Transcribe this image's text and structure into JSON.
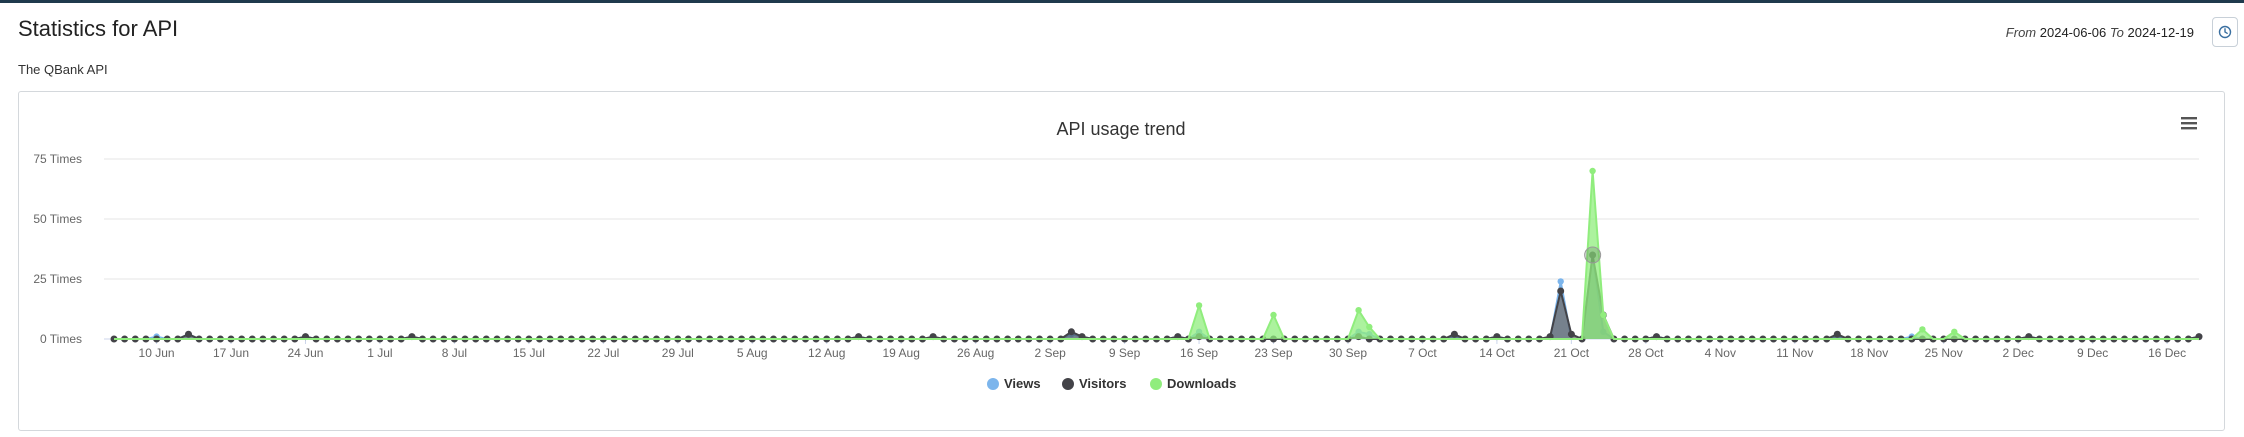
{
  "page": {
    "title": "Statistics for API",
    "subtitle": "The QBank API",
    "range_from_label": "From",
    "range_from": "2024-06-06",
    "range_to_label": "To",
    "range_to": "2024-12-19",
    "clock_icon": "clock-icon",
    "menu_icon": "hamburger-menu-icon"
  },
  "chart_data": {
    "type": "line",
    "title": "API usage trend",
    "x_start": "2024-06-06",
    "x_end": "2024-12-19",
    "x_ticks": [
      "10 Jun",
      "17 Jun",
      "24 Jun",
      "1 Jul",
      "8 Jul",
      "15 Jul",
      "22 Jul",
      "29 Jul",
      "5 Aug",
      "12 Aug",
      "19 Aug",
      "26 Aug",
      "2 Sep",
      "9 Sep",
      "16 Sep",
      "23 Sep",
      "30 Sep",
      "7 Oct",
      "14 Oct",
      "21 Oct",
      "28 Oct",
      "4 Nov",
      "11 Nov",
      "18 Nov",
      "25 Nov",
      "2 Dec",
      "9 Dec",
      "16 Dec"
    ],
    "y_ticks": [
      "0 Times",
      "25 Times",
      "50 Times",
      "75 Times"
    ],
    "ylim": [
      0,
      75
    ],
    "grid": true,
    "legend_position": "bottom-center",
    "series": [
      {
        "name": "Views",
        "color": "#7cb5ec",
        "points": [
          {
            "x": "2024-06-10",
            "y": 1
          },
          {
            "x": "2024-06-13",
            "y": 2
          },
          {
            "x": "2024-06-24",
            "y": 1
          },
          {
            "x": "2024-07-04",
            "y": 1
          },
          {
            "x": "2024-08-15",
            "y": 1
          },
          {
            "x": "2024-09-04",
            "y": 2
          },
          {
            "x": "2024-09-05",
            "y": 1
          },
          {
            "x": "2024-09-14",
            "y": 1
          },
          {
            "x": "2024-09-16",
            "y": 3
          },
          {
            "x": "2024-10-01",
            "y": 3
          },
          {
            "x": "2024-10-02",
            "y": 2
          },
          {
            "x": "2024-10-10",
            "y": 1
          },
          {
            "x": "2024-10-14",
            "y": 1
          },
          {
            "x": "2024-10-20",
            "y": 24
          },
          {
            "x": "2024-10-23",
            "y": 35
          },
          {
            "x": "2024-10-24",
            "y": 3
          },
          {
            "x": "2024-10-29",
            "y": 1
          },
          {
            "x": "2024-11-15",
            "y": 1
          },
          {
            "x": "2024-11-22",
            "y": 1
          },
          {
            "x": "2024-12-03",
            "y": 1
          },
          {
            "x": "2024-12-19",
            "y": 1
          }
        ]
      },
      {
        "name": "Visitors",
        "color": "#434348",
        "points": [
          {
            "x": "2024-06-13",
            "y": 2
          },
          {
            "x": "2024-06-24",
            "y": 1
          },
          {
            "x": "2024-07-04",
            "y": 1
          },
          {
            "x": "2024-08-15",
            "y": 1
          },
          {
            "x": "2024-08-22",
            "y": 1
          },
          {
            "x": "2024-09-04",
            "y": 3
          },
          {
            "x": "2024-09-05",
            "y": 1
          },
          {
            "x": "2024-09-14",
            "y": 1
          },
          {
            "x": "2024-09-16",
            "y": 1
          },
          {
            "x": "2024-10-01",
            "y": 1
          },
          {
            "x": "2024-10-10",
            "y": 2
          },
          {
            "x": "2024-10-14",
            "y": 1
          },
          {
            "x": "2024-10-19",
            "y": 1
          },
          {
            "x": "2024-10-20",
            "y": 20
          },
          {
            "x": "2024-10-21",
            "y": 2
          },
          {
            "x": "2024-10-23",
            "y": 35
          },
          {
            "x": "2024-10-24",
            "y": 10
          },
          {
            "x": "2024-10-29",
            "y": 1
          },
          {
            "x": "2024-11-15",
            "y": 2
          },
          {
            "x": "2024-12-03",
            "y": 1
          },
          {
            "x": "2024-12-19",
            "y": 1
          }
        ]
      },
      {
        "name": "Downloads",
        "color": "#90ed7d",
        "points": [
          {
            "x": "2024-09-16",
            "y": 14
          },
          {
            "x": "2024-09-23",
            "y": 10
          },
          {
            "x": "2024-10-01",
            "y": 12
          },
          {
            "x": "2024-10-02",
            "y": 5
          },
          {
            "x": "2024-10-23",
            "y": 70
          },
          {
            "x": "2024-10-24",
            "y": 10
          },
          {
            "x": "2024-11-23",
            "y": 4
          },
          {
            "x": "2024-11-26",
            "y": 3
          }
        ]
      }
    ]
  }
}
